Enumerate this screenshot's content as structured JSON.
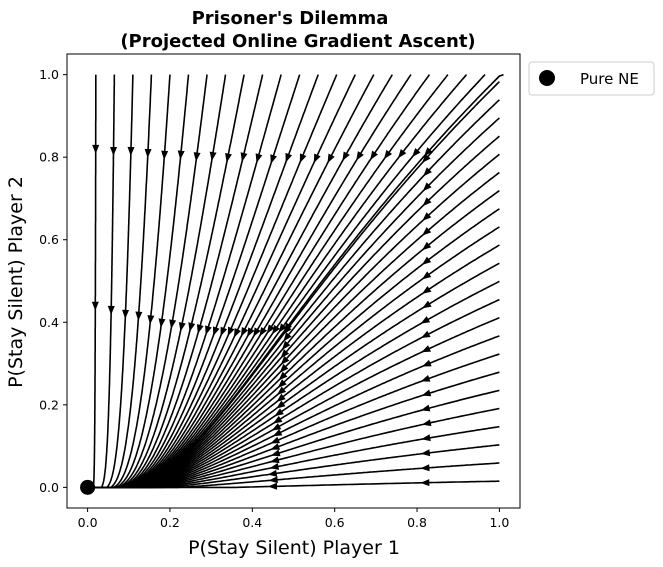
{
  "chart_data": {
    "type": "streamplot",
    "title": [
      "Prisoner's Dilemma",
      "(Projected Online Gradient Ascent)"
    ],
    "xlabel": "P(Stay Silent) Player 1",
    "ylabel": "P(Stay Silent) Player 2",
    "xlim": [
      -0.05,
      1.05
    ],
    "ylim": [
      -0.05,
      1.05
    ],
    "xticks": [
      0.0,
      0.2,
      0.4,
      0.6,
      0.8,
      1.0
    ],
    "yticks": [
      0.0,
      0.2,
      0.4,
      0.6,
      0.8,
      1.0
    ],
    "tick_labels": [
      "0.0",
      "0.2",
      "0.4",
      "0.6",
      "0.8",
      "1.0"
    ],
    "grid": false,
    "stream_color": "#000000",
    "points": [
      {
        "name": "Pure NE",
        "x": 0.0,
        "y": 0.0,
        "marker": "circle",
        "color": "#000000"
      }
    ],
    "legend": {
      "position": "outside-top-right",
      "entries": [
        "Pure NE"
      ]
    }
  }
}
